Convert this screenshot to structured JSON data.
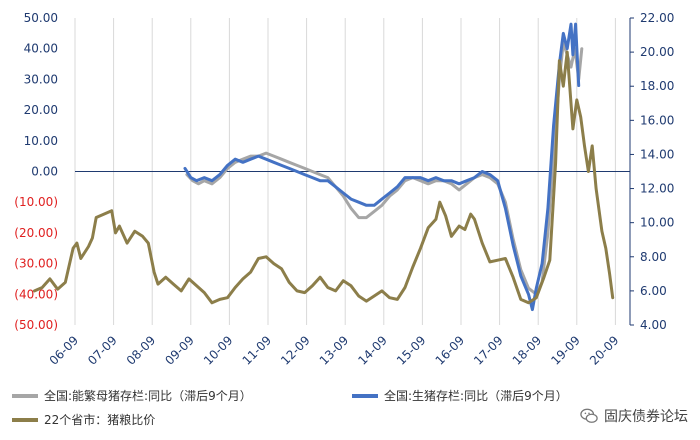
{
  "chart_data": {
    "type": "line",
    "x_ticks": [
      "06-09",
      "07-09",
      "08-09",
      "09-09",
      "10-09",
      "11-09",
      "12-09",
      "13-09",
      "14-09",
      "15-09",
      "16-09",
      "17-09",
      "18-09",
      "19-09",
      "20-09"
    ],
    "left_axis": {
      "ylim": [
        -50,
        50
      ],
      "ticks": [
        "50.00",
        "40.00",
        "30.00",
        "20.00",
        "10.00",
        "0.00",
        "(10.00)",
        "(20.00)",
        "(30.00)",
        "(40.00)",
        "(50.00)"
      ],
      "tick_values": [
        50,
        40,
        30,
        20,
        10,
        0,
        -10,
        -20,
        -30,
        -40,
        -50
      ],
      "positive_color": "#1f3a70",
      "negative_color": "#e02020"
    },
    "right_axis": {
      "ylim": [
        4,
        22
      ],
      "ticks": [
        "22.00",
        "20.00",
        "18.00",
        "16.00",
        "14.00",
        "12.00",
        "10.00",
        "8.00",
        "6.00",
        "4.00"
      ],
      "tick_values": [
        22,
        20,
        18,
        16,
        14,
        12,
        10,
        8,
        6,
        4
      ]
    },
    "series": [
      {
        "name": "全国:能繁母猪存栏:同比（滞后9个月）",
        "axis": "left",
        "color": "#a6a6a6",
        "points": [
          [
            2009.65,
            -1
          ],
          [
            2009.8,
            -3
          ],
          [
            2009.95,
            -4
          ],
          [
            2010.1,
            -3
          ],
          [
            2010.3,
            -4
          ],
          [
            2010.5,
            -2
          ],
          [
            2010.7,
            1
          ],
          [
            2010.9,
            3
          ],
          [
            2011.1,
            4
          ],
          [
            2011.3,
            5
          ],
          [
            2011.5,
            5
          ],
          [
            2011.7,
            6
          ],
          [
            2011.9,
            5
          ],
          [
            2012.1,
            4
          ],
          [
            2012.3,
            3
          ],
          [
            2012.5,
            2
          ],
          [
            2012.7,
            1
          ],
          [
            2012.9,
            0
          ],
          [
            2013.1,
            -1
          ],
          [
            2013.3,
            -2
          ],
          [
            2013.5,
            -5
          ],
          [
            2013.7,
            -8
          ],
          [
            2013.9,
            -12
          ],
          [
            2014.1,
            -15
          ],
          [
            2014.3,
            -15
          ],
          [
            2014.5,
            -13
          ],
          [
            2014.7,
            -11
          ],
          [
            2014.9,
            -8
          ],
          [
            2015.1,
            -6
          ],
          [
            2015.3,
            -3
          ],
          [
            2015.5,
            -2
          ],
          [
            2015.7,
            -3
          ],
          [
            2015.9,
            -4
          ],
          [
            2016.1,
            -3
          ],
          [
            2016.3,
            -3
          ],
          [
            2016.5,
            -4
          ],
          [
            2016.7,
            -6
          ],
          [
            2016.9,
            -4
          ],
          [
            2017.1,
            -2
          ],
          [
            2017.3,
            -1
          ],
          [
            2017.5,
            -2
          ],
          [
            2017.7,
            -4
          ],
          [
            2017.9,
            -10
          ],
          [
            2018.1,
            -22
          ],
          [
            2018.3,
            -32
          ],
          [
            2018.5,
            -38
          ],
          [
            2018.7,
            -40
          ],
          [
            2018.85,
            -36
          ],
          [
            2019.0,
            -20
          ],
          [
            2019.15,
            5
          ],
          [
            2019.3,
            30
          ],
          [
            2019.4,
            42
          ],
          [
            2019.5,
            38
          ],
          [
            2019.6,
            34
          ],
          [
            2019.7,
            40
          ],
          [
            2019.8,
            30
          ],
          [
            2019.88,
            40
          ]
        ]
      },
      {
        "name": "全国:生猪存栏:同比（滞后9个月）",
        "axis": "left",
        "color": "#4472c4",
        "points": [
          [
            2009.6,
            1
          ],
          [
            2009.75,
            -2
          ],
          [
            2009.9,
            -3
          ],
          [
            2010.1,
            -2
          ],
          [
            2010.3,
            -3
          ],
          [
            2010.5,
            -1
          ],
          [
            2010.7,
            2
          ],
          [
            2010.9,
            4
          ],
          [
            2011.1,
            3
          ],
          [
            2011.3,
            4
          ],
          [
            2011.5,
            5
          ],
          [
            2011.7,
            4
          ],
          [
            2011.9,
            3
          ],
          [
            2012.1,
            2
          ],
          [
            2012.3,
            1
          ],
          [
            2012.5,
            0
          ],
          [
            2012.7,
            -1
          ],
          [
            2012.9,
            -2
          ],
          [
            2013.1,
            -3
          ],
          [
            2013.3,
            -3
          ],
          [
            2013.5,
            -5
          ],
          [
            2013.7,
            -7
          ],
          [
            2013.9,
            -9
          ],
          [
            2014.1,
            -10
          ],
          [
            2014.3,
            -11
          ],
          [
            2014.5,
            -11
          ],
          [
            2014.7,
            -9
          ],
          [
            2014.9,
            -7
          ],
          [
            2015.1,
            -5
          ],
          [
            2015.3,
            -2
          ],
          [
            2015.5,
            -2
          ],
          [
            2015.7,
            -2
          ],
          [
            2015.9,
            -3
          ],
          [
            2016.1,
            -2
          ],
          [
            2016.3,
            -3
          ],
          [
            2016.5,
            -3
          ],
          [
            2016.7,
            -4
          ],
          [
            2016.9,
            -3
          ],
          [
            2017.1,
            -2
          ],
          [
            2017.3,
            0
          ],
          [
            2017.5,
            -1
          ],
          [
            2017.7,
            -3
          ],
          [
            2017.9,
            -12
          ],
          [
            2018.1,
            -24
          ],
          [
            2018.3,
            -34
          ],
          [
            2018.5,
            -40
          ],
          [
            2018.6,
            -45
          ],
          [
            2018.7,
            -38
          ],
          [
            2018.85,
            -30
          ],
          [
            2019.0,
            -12
          ],
          [
            2019.15,
            15
          ],
          [
            2019.3,
            35
          ],
          [
            2019.4,
            45
          ],
          [
            2019.5,
            40
          ],
          [
            2019.6,
            48
          ],
          [
            2019.65,
            38
          ],
          [
            2019.72,
            48
          ],
          [
            2019.8,
            28
          ]
        ]
      },
      {
        "name": "22个省市：猪粮比价",
        "axis": "right",
        "color": "#8c7e4a",
        "points": [
          [
            2005.7,
            6.0
          ],
          [
            2005.9,
            6.2
          ],
          [
            2006.1,
            6.7
          ],
          [
            2006.3,
            6.1
          ],
          [
            2006.5,
            6.5
          ],
          [
            2006.7,
            8.5
          ],
          [
            2006.8,
            8.8
          ],
          [
            2006.9,
            7.9
          ],
          [
            2007.1,
            8.6
          ],
          [
            2007.2,
            9.1
          ],
          [
            2007.3,
            10.3
          ],
          [
            2007.5,
            10.5
          ],
          [
            2007.7,
            10.7
          ],
          [
            2007.8,
            9.4
          ],
          [
            2007.9,
            9.8
          ],
          [
            2008.1,
            8.8
          ],
          [
            2008.3,
            9.5
          ],
          [
            2008.5,
            9.2
          ],
          [
            2008.65,
            8.8
          ],
          [
            2008.8,
            7.1
          ],
          [
            2008.9,
            6.4
          ],
          [
            2009.1,
            6.8
          ],
          [
            2009.3,
            6.4
          ],
          [
            2009.5,
            6.0
          ],
          [
            2009.7,
            6.7
          ],
          [
            2009.9,
            6.3
          ],
          [
            2010.1,
            5.9
          ],
          [
            2010.3,
            5.3
          ],
          [
            2010.5,
            5.5
          ],
          [
            2010.7,
            5.6
          ],
          [
            2010.9,
            6.2
          ],
          [
            2011.1,
            6.7
          ],
          [
            2011.3,
            7.1
          ],
          [
            2011.5,
            7.9
          ],
          [
            2011.7,
            8.0
          ],
          [
            2011.9,
            7.6
          ],
          [
            2012.1,
            7.3
          ],
          [
            2012.3,
            6.5
          ],
          [
            2012.5,
            6.0
          ],
          [
            2012.7,
            5.9
          ],
          [
            2012.9,
            6.3
          ],
          [
            2013.1,
            6.8
          ],
          [
            2013.3,
            6.2
          ],
          [
            2013.5,
            6.0
          ],
          [
            2013.7,
            6.6
          ],
          [
            2013.9,
            6.3
          ],
          [
            2014.1,
            5.7
          ],
          [
            2014.3,
            5.4
          ],
          [
            2014.5,
            5.7
          ],
          [
            2014.7,
            6.0
          ],
          [
            2014.9,
            5.6
          ],
          [
            2015.1,
            5.5
          ],
          [
            2015.3,
            6.2
          ],
          [
            2015.5,
            7.4
          ],
          [
            2015.7,
            8.5
          ],
          [
            2015.9,
            9.7
          ],
          [
            2016.1,
            10.2
          ],
          [
            2016.2,
            11.2
          ],
          [
            2016.35,
            10.4
          ],
          [
            2016.5,
            9.2
          ],
          [
            2016.7,
            9.8
          ],
          [
            2016.85,
            9.6
          ],
          [
            2017.0,
            10.5
          ],
          [
            2017.1,
            10.2
          ],
          [
            2017.3,
            8.8
          ],
          [
            2017.5,
            7.7
          ],
          [
            2017.7,
            7.8
          ],
          [
            2017.9,
            7.9
          ],
          [
            2018.1,
            6.8
          ],
          [
            2018.3,
            5.5
          ],
          [
            2018.5,
            5.3
          ],
          [
            2018.7,
            5.6
          ],
          [
            2018.9,
            6.8
          ],
          [
            2019.05,
            7.8
          ],
          [
            2019.2,
            13.5
          ],
          [
            2019.3,
            19.5
          ],
          [
            2019.4,
            18.0
          ],
          [
            2019.5,
            20.0
          ],
          [
            2019.55,
            18.5
          ],
          [
            2019.65,
            15.5
          ],
          [
            2019.75,
            17.2
          ],
          [
            2019.85,
            16.2
          ],
          [
            2019.95,
            14.5
          ],
          [
            2020.05,
            13.0
          ],
          [
            2020.15,
            14.5
          ],
          [
            2020.25,
            12.0
          ],
          [
            2020.4,
            9.5
          ],
          [
            2020.5,
            8.5
          ],
          [
            2020.6,
            7.0
          ],
          [
            2020.68,
            5.6
          ]
        ]
      }
    ],
    "zero_line": 0,
    "legend_position": "bottom-left",
    "grid": "vertical"
  },
  "watermark": "固庆债券论坛"
}
